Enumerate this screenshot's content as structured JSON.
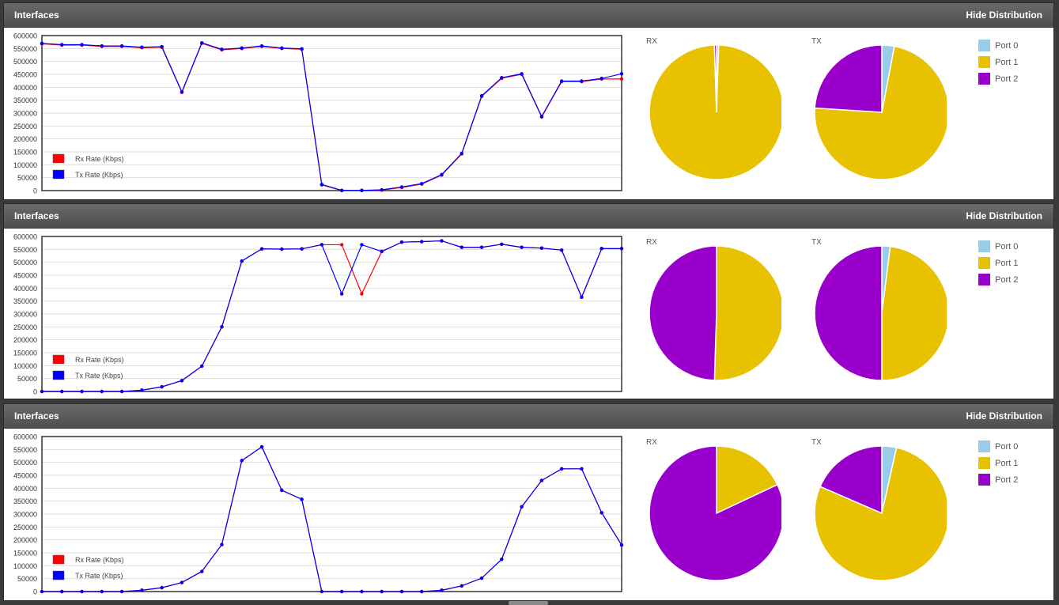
{
  "colors": {
    "rx": "#ff0000",
    "tx": "#0000ff",
    "port0": "#99cce8",
    "port1": "#e8c100",
    "port2": "#9900cc"
  },
  "panels": [
    {
      "title": "Interfaces",
      "hide_label": "Hide Distribution",
      "chart_data": {
        "type": "line",
        "y_ticks": [
          "600000",
          "550000",
          "500000",
          "450000",
          "400000",
          "350000",
          "300000",
          "250000",
          "200000",
          "150000",
          "100000",
          "50000",
          "0"
        ],
        "ylim": [
          0,
          600000
        ],
        "legend": [
          "Rx Rate (Kbps)",
          "Tx Rate (Kbps)"
        ],
        "series": [
          {
            "name": "Rx Rate (Kbps)",
            "values": [
              568000,
              563000,
              563000,
              558000,
              558000,
              553000,
              555000,
              380000,
              570000,
              545000,
              550000,
              558000,
              550000,
              547000,
              22000,
              0,
              0,
              2000,
              12000,
              25000,
              60000,
              142000,
              365000,
              435000,
              450000,
              285000,
              422000,
              422000,
              432000,
              432000
            ]
          },
          {
            "name": "Tx Rate (Kbps)",
            "values": [
              570000,
              565000,
              565000,
              560000,
              560000,
              555000,
              557000,
              382000,
              572000,
              547000,
              552000,
              560000,
              552000,
              549000,
              24000,
              1000,
              1000,
              3000,
              14000,
              27000,
              62000,
              144000,
              367000,
              437000,
              452000,
              287000,
              424000,
              424000,
              434000,
              452000
            ]
          }
        ],
        "pies": [
          {
            "label": "RX",
            "values": [
              0.5,
              99,
              0.5
            ]
          },
          {
            "label": "TX",
            "values": [
              3,
              73,
              24
            ]
          }
        ]
      }
    },
    {
      "title": "Interfaces",
      "hide_label": "Hide Distribution",
      "chart_data": {
        "type": "line",
        "y_ticks": [
          "600000",
          "550000",
          "500000",
          "450000",
          "400000",
          "350000",
          "300000",
          "250000",
          "200000",
          "150000",
          "100000",
          "50000",
          "0"
        ],
        "ylim": [
          0,
          600000
        ],
        "legend": [
          "Rx Rate (Kbps)",
          "Tx Rate (Kbps)"
        ],
        "series": [
          {
            "name": "Rx Rate (Kbps)",
            "values": [
              0,
              0,
              0,
              0,
              0,
              5000,
              18000,
              42000,
              98000,
              250000,
              505000,
              552000,
              551000,
              552000,
              568000,
              568000,
              378000,
              542000,
              578000,
              580000,
              583000,
              558000,
              558000,
              570000,
              558000,
              555000,
              547000,
              365000,
              553000,
              553000
            ]
          },
          {
            "name": "Tx Rate (Kbps)",
            "values": [
              0,
              0,
              0,
              0,
              0,
              5000,
              18000,
              42000,
              98000,
              250000,
              505000,
              552000,
              551000,
              552000,
              568000,
              378000,
              568000,
              542000,
              578000,
              580000,
              583000,
              558000,
              558000,
              570000,
              558000,
              555000,
              547000,
              365000,
              553000,
              553000
            ]
          }
        ],
        "pies": [
          {
            "label": "RX",
            "values": [
              0,
              50.5,
              49.5
            ]
          },
          {
            "label": "TX",
            "values": [
              2,
              48,
              50
            ]
          }
        ]
      }
    },
    {
      "title": "Interfaces",
      "hide_label": "Hide Distribution",
      "chart_data": {
        "type": "line",
        "y_ticks": [
          "600000",
          "550000",
          "500000",
          "450000",
          "400000",
          "350000",
          "300000",
          "250000",
          "200000",
          "150000",
          "100000",
          "50000",
          "0"
        ],
        "ylim": [
          0,
          600000
        ],
        "legend": [
          "Rx Rate (Kbps)",
          "Tx Rate (Kbps)"
        ],
        "series": [
          {
            "name": "Rx Rate (Kbps)",
            "values": [
              0,
              0,
              0,
              0,
              0,
              5000,
              15000,
              35000,
              78000,
              182000,
              507000,
              560000,
              392000,
              357000,
              0,
              0,
              0,
              0,
              0,
              0,
              5000,
              22000,
              52000,
              125000,
              328000,
              430000,
              475000,
              475000,
              305000,
              180000
            ]
          },
          {
            "name": "Tx Rate (Kbps)",
            "values": [
              0,
              0,
              0,
              0,
              0,
              5000,
              15000,
              35000,
              78000,
              182000,
              507000,
              560000,
              392000,
              357000,
              0,
              0,
              0,
              0,
              0,
              0,
              5000,
              22000,
              52000,
              125000,
              328000,
              430000,
              475000,
              475000,
              305000,
              180000
            ]
          }
        ],
        "pies": [
          {
            "label": "RX",
            "values": [
              0,
              18,
              82
            ]
          },
          {
            "label": "TX",
            "values": [
              3.5,
              78,
              18.5
            ]
          }
        ]
      }
    }
  ],
  "legend_ports": [
    "Port 0",
    "Port 1",
    "Port 2"
  ]
}
